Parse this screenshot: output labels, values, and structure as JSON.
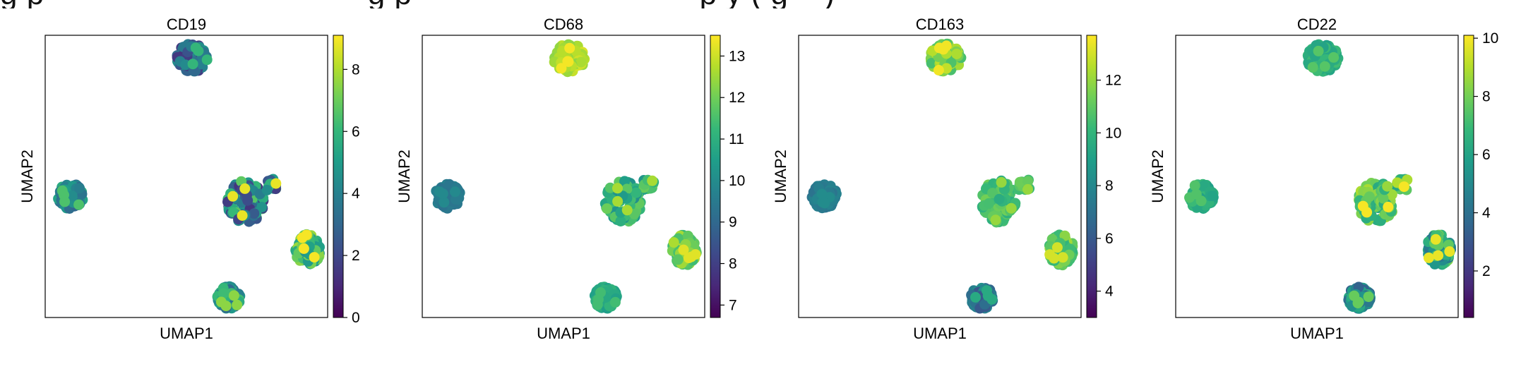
{
  "header_fragment": "g p                                    g p                                p y ( g    )",
  "colormap": [
    "#440154",
    "#482878",
    "#3e4989",
    "#31688e",
    "#26828e",
    "#1f9e89",
    "#35b779",
    "#6ece58",
    "#b5de2b",
    "#fde725"
  ],
  "chart_data": [
    {
      "type": "scatter",
      "title": "CD19",
      "xlabel": "UMAP1",
      "ylabel": "UMAP2",
      "colorbar": {
        "range": [
          0,
          9.1
        ],
        "ticks": [
          0,
          2,
          4,
          6,
          8
        ]
      },
      "clusters": [
        {
          "center": [
            0.52,
            0.92
          ],
          "mean": 3.0,
          "max_value": 6.0
        },
        {
          "center": [
            0.09,
            0.43
          ],
          "mean": 4.2,
          "max_value": 6.5
        },
        {
          "center": [
            0.71,
            0.41
          ],
          "mean": 4.0,
          "max_value": 8.8
        },
        {
          "center": [
            0.93,
            0.24
          ],
          "mean": 6.3,
          "max_value": 9.0
        },
        {
          "center": [
            0.65,
            0.07
          ],
          "mean": 4.5,
          "max_value": 7.5
        }
      ]
    },
    {
      "type": "scatter",
      "title": "CD68",
      "xlabel": "UMAP1",
      "ylabel": "UMAP2",
      "colorbar": {
        "range": [
          6.7,
          13.5
        ],
        "ticks": [
          7,
          8,
          9,
          10,
          11,
          12,
          13
        ]
      },
      "clusters": [
        {
          "center": [
            0.52,
            0.92
          ],
          "mean": 12.7,
          "max_value": 13.4
        },
        {
          "center": [
            0.09,
            0.43
          ],
          "mean": 9.5,
          "max_value": 9.9
        },
        {
          "center": [
            0.71,
            0.41
          ],
          "mean": 11.0,
          "max_value": 12.6
        },
        {
          "center": [
            0.93,
            0.24
          ],
          "mean": 12.0,
          "max_value": 13.2
        },
        {
          "center": [
            0.65,
            0.07
          ],
          "mean": 10.8,
          "max_value": 11.4
        }
      ]
    },
    {
      "type": "scatter",
      "title": "CD163",
      "xlabel": "UMAP1",
      "ylabel": "UMAP2",
      "colorbar": {
        "range": [
          3.0,
          13.7
        ],
        "ticks": [
          4,
          6,
          8,
          10,
          12
        ]
      },
      "clusters": [
        {
          "center": [
            0.52,
            0.92
          ],
          "mean": 11.6,
          "max_value": 13.5
        },
        {
          "center": [
            0.09,
            0.43
          ],
          "mean": 7.5,
          "max_value": 8.2
        },
        {
          "center": [
            0.71,
            0.41
          ],
          "mean": 10.5,
          "max_value": 12.0
        },
        {
          "center": [
            0.93,
            0.24
          ],
          "mean": 11.0,
          "max_value": 13.0
        },
        {
          "center": [
            0.65,
            0.07
          ],
          "mean": 7.2,
          "max_value": 9.5
        }
      ]
    },
    {
      "type": "scatter",
      "title": "CD22",
      "xlabel": "UMAP1",
      "ylabel": "UMAP2",
      "colorbar": {
        "range": [
          0.4,
          10.1
        ],
        "ticks": [
          2,
          4,
          6,
          8,
          10
        ]
      },
      "clusters": [
        {
          "center": [
            0.52,
            0.92
          ],
          "mean": 6.5,
          "max_value": 7.5
        },
        {
          "center": [
            0.09,
            0.43
          ],
          "mean": 6.4,
          "max_value": 7.4
        },
        {
          "center": [
            0.71,
            0.41
          ],
          "mean": 7.5,
          "max_value": 10.0
        },
        {
          "center": [
            0.93,
            0.24
          ],
          "mean": 6.2,
          "max_value": 9.8
        },
        {
          "center": [
            0.65,
            0.07
          ],
          "mean": 5.0,
          "max_value": 7.8
        }
      ]
    }
  ]
}
